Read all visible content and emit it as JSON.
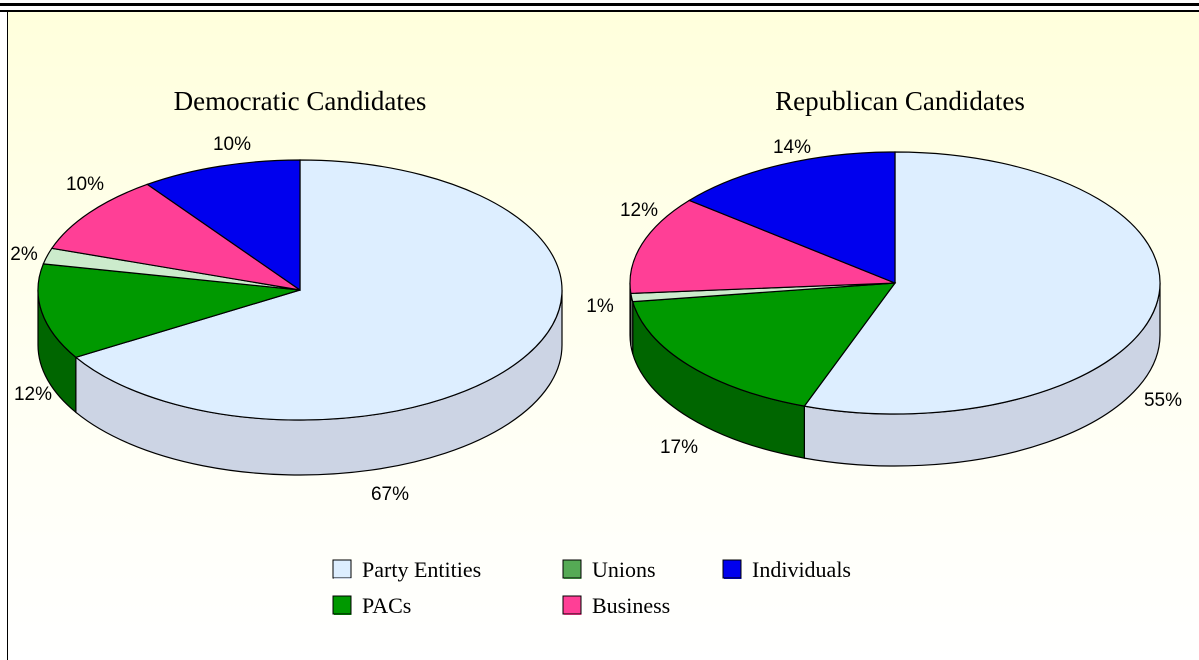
{
  "chart_data": {
    "type": "pie",
    "legend": [
      {
        "name": "Party Entities",
        "color": "#ddeeff",
        "side": "#ccd4e4"
      },
      {
        "name": "Unions",
        "color": "#55aa55",
        "side": "#337733"
      },
      {
        "name": "Individuals",
        "color": "#0000ee",
        "side": "#000099"
      },
      {
        "name": "PACs",
        "color": "#009900",
        "side": "#006600"
      },
      {
        "name": "Business",
        "color": "#ff3f96",
        "side": "#c02a6c"
      }
    ],
    "legend_placement": "bottom",
    "pies": [
      {
        "title": "Democratic Candidates",
        "slices": [
          {
            "label": "Party Entities",
            "value": 67,
            "text": "67%",
            "color": "#ddeeff",
            "side": "#ccd4e4"
          },
          {
            "label": "PACs",
            "value": 12,
            "text": "12%",
            "color": "#009900",
            "side": "#006600"
          },
          {
            "label": "Unions",
            "value": 2,
            "text": "2%",
            "color": "#ccebcc",
            "side": "#a8c8a8"
          },
          {
            "label": "Business",
            "value": 10,
            "text": "10%",
            "color": "#ff3f96",
            "side": "#c02a6c"
          },
          {
            "label": "Individuals",
            "value": 10,
            "text": "10%",
            "color": "#0000ee",
            "side": "#000099"
          }
        ]
      },
      {
        "title": "Republican Candidates",
        "slices": [
          {
            "label": "Party Entities",
            "value": 55,
            "text": "55%",
            "color": "#ddeeff",
            "side": "#ccd4e4"
          },
          {
            "label": "PACs",
            "value": 17,
            "text": "17%",
            "color": "#009900",
            "side": "#006600"
          },
          {
            "label": "Unions",
            "value": 1,
            "text": "1%",
            "color": "#ccebcc",
            "side": "#a8c8a8"
          },
          {
            "label": "Business",
            "value": 12,
            "text": "12%",
            "color": "#ff3f96",
            "side": "#c02a6c"
          },
          {
            "label": "Individuals",
            "value": 14,
            "text": "14%",
            "color": "#0000ee",
            "side": "#000099"
          }
        ]
      }
    ]
  }
}
